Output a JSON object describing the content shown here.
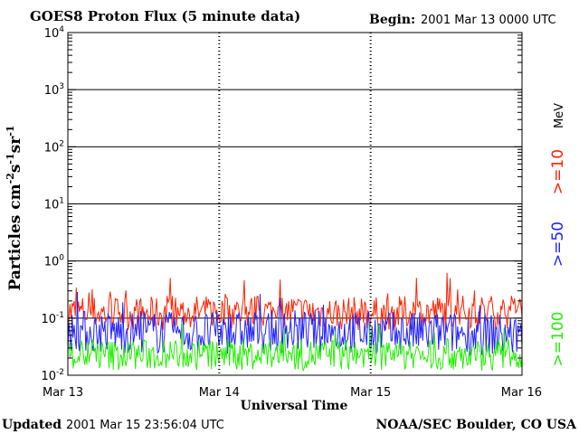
{
  "header": {
    "title": "GOES8 Proton Flux (5 minute data)",
    "begin_label": "Begin:",
    "begin_value": "2001 Mar 13 0000 UTC"
  },
  "footer": {
    "updated_label": "Updated",
    "updated_value": "2001 Mar 15 23:56:04 UTC",
    "source": "NOAA/SEC Boulder, CO USA"
  },
  "chart_data": {
    "type": "line",
    "title": "GOES8 Proton Flux (5 minute data)",
    "xlabel": "Universal Time",
    "ylabel_base": "Particles cm",
    "ylabel_sup1": "-2",
    "ylabel_mid1": "s",
    "ylabel_sup2": "-1",
    "ylabel_mid2": "sr",
    "ylabel_sup3": "-1",
    "y_scale": "log",
    "ylim": [
      0.01,
      10000
    ],
    "y_ticks": [
      {
        "value": 10000,
        "base": "10",
        "exp": "4"
      },
      {
        "value": 1000,
        "base": "10",
        "exp": "3"
      },
      {
        "value": 100,
        "base": "10",
        "exp": "2"
      },
      {
        "value": 10,
        "base": "10",
        "exp": "1"
      },
      {
        "value": 1,
        "base": "10",
        "exp": "0"
      },
      {
        "value": 0.1,
        "base": "10",
        "exp": "-1"
      },
      {
        "value": 0.01,
        "base": "10",
        "exp": "-2"
      }
    ],
    "x_ticks": [
      "Mar 13",
      "Mar 14",
      "Mar 15",
      "Mar 16"
    ],
    "grid": true,
    "legend_placement": "right",
    "legend_unit": "MeV",
    "series": [
      {
        "name": ">=10",
        "color": "#ff2200",
        "typical_value": 0.1,
        "x": [
          "Mar 13",
          "Mar 13 12:00",
          "Mar 14",
          "Mar 14 12:00",
          "Mar 15",
          "Mar 15 12:00",
          "Mar 16"
        ],
        "values": [
          0.12,
          0.11,
          0.12,
          0.12,
          0.11,
          0.12,
          0.12
        ]
      },
      {
        "name": ">=50",
        "color": "#2222ff",
        "typical_value": 0.055,
        "x": [
          "Mar 13",
          "Mar 13 12:00",
          "Mar 14",
          "Mar 14 12:00",
          "Mar 15",
          "Mar 15 12:00",
          "Mar 16"
        ],
        "values": [
          0.06,
          0.055,
          0.055,
          0.06,
          0.055,
          0.055,
          0.05
        ]
      },
      {
        "name": ">=100",
        "color": "#22ee00",
        "typical_value": 0.02,
        "x": [
          "Mar 13",
          "Mar 13 12:00",
          "Mar 14",
          "Mar 14 12:00",
          "Mar 15",
          "Mar 15 12:00",
          "Mar 16"
        ],
        "values": [
          0.02,
          0.02,
          0.02,
          0.02,
          0.02,
          0.02,
          0.02
        ]
      }
    ]
  }
}
